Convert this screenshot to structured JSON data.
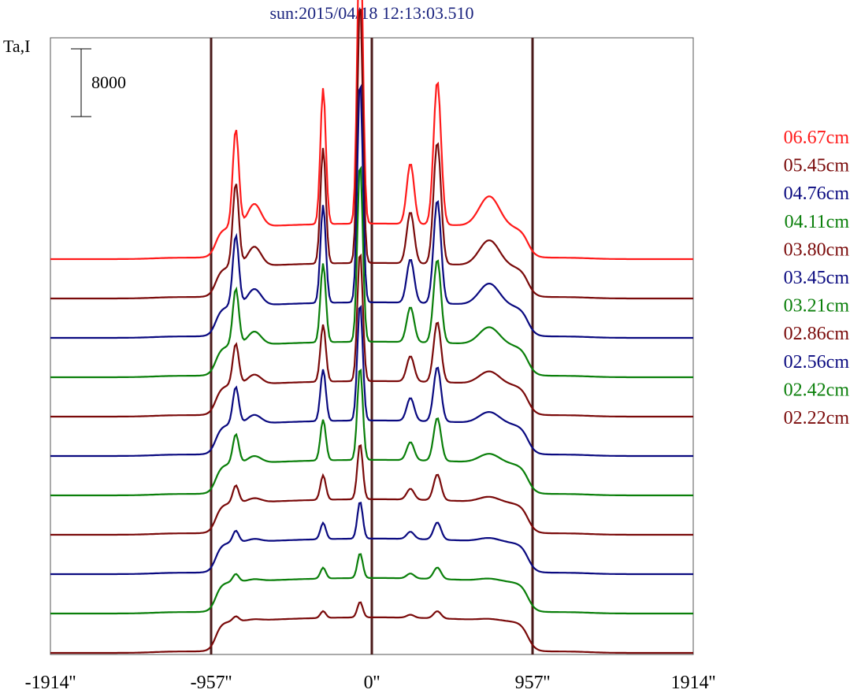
{
  "chart_data": {
    "type": "line",
    "title": "sun:2015/04/18 12:13:03.510",
    "ylabel": "Ta,I",
    "scale_bar_label": "8000",
    "xlim": [
      -1914,
      1914
    ],
    "x_ticks": [
      {
        "value": -1914,
        "label": "-1914''"
      },
      {
        "value": -957,
        "label": "-957''"
      },
      {
        "value": 0,
        "label": "0''"
      },
      {
        "value": 957,
        "label": "957''"
      },
      {
        "value": 1914,
        "label": "1914''"
      }
    ],
    "vertical_markers": [
      -957,
      0,
      957
    ],
    "series_order_note_free": true,
    "series": [
      {
        "name": "06.67cm",
        "color": "#ff1a1a",
        "offset": 10,
        "peak": 1.0
      },
      {
        "name": "05.45cm",
        "color": "#7a0a0a",
        "offset": 9,
        "peak": 0.85
      },
      {
        "name": "04.76cm",
        "color": "#0a0a80",
        "offset": 8,
        "peak": 0.72
      },
      {
        "name": "04.11cm",
        "color": "#0a7f0a",
        "offset": 7,
        "peak": 0.58
      },
      {
        "name": "03.80cm",
        "color": "#7a0a0a",
        "offset": 6,
        "peak": 0.42
      },
      {
        "name": "03.45cm",
        "color": "#0a0a80",
        "offset": 5,
        "peak": 0.38
      },
      {
        "name": "03.21cm",
        "color": "#0a7f0a",
        "offset": 4,
        "peak": 0.3
      },
      {
        "name": "02.86cm",
        "color": "#7a0a0a",
        "offset": 3,
        "peak": 0.18
      },
      {
        "name": "02.56cm",
        "color": "#0a0a80",
        "offset": 2,
        "peak": 0.12
      },
      {
        "name": "02.42cm",
        "color": "#0a7f0a",
        "offset": 1,
        "peak": 0.08
      },
      {
        "name": "02.22cm",
        "color": "#7a0a0a",
        "offset": 0,
        "peak": 0.05
      }
    ]
  }
}
